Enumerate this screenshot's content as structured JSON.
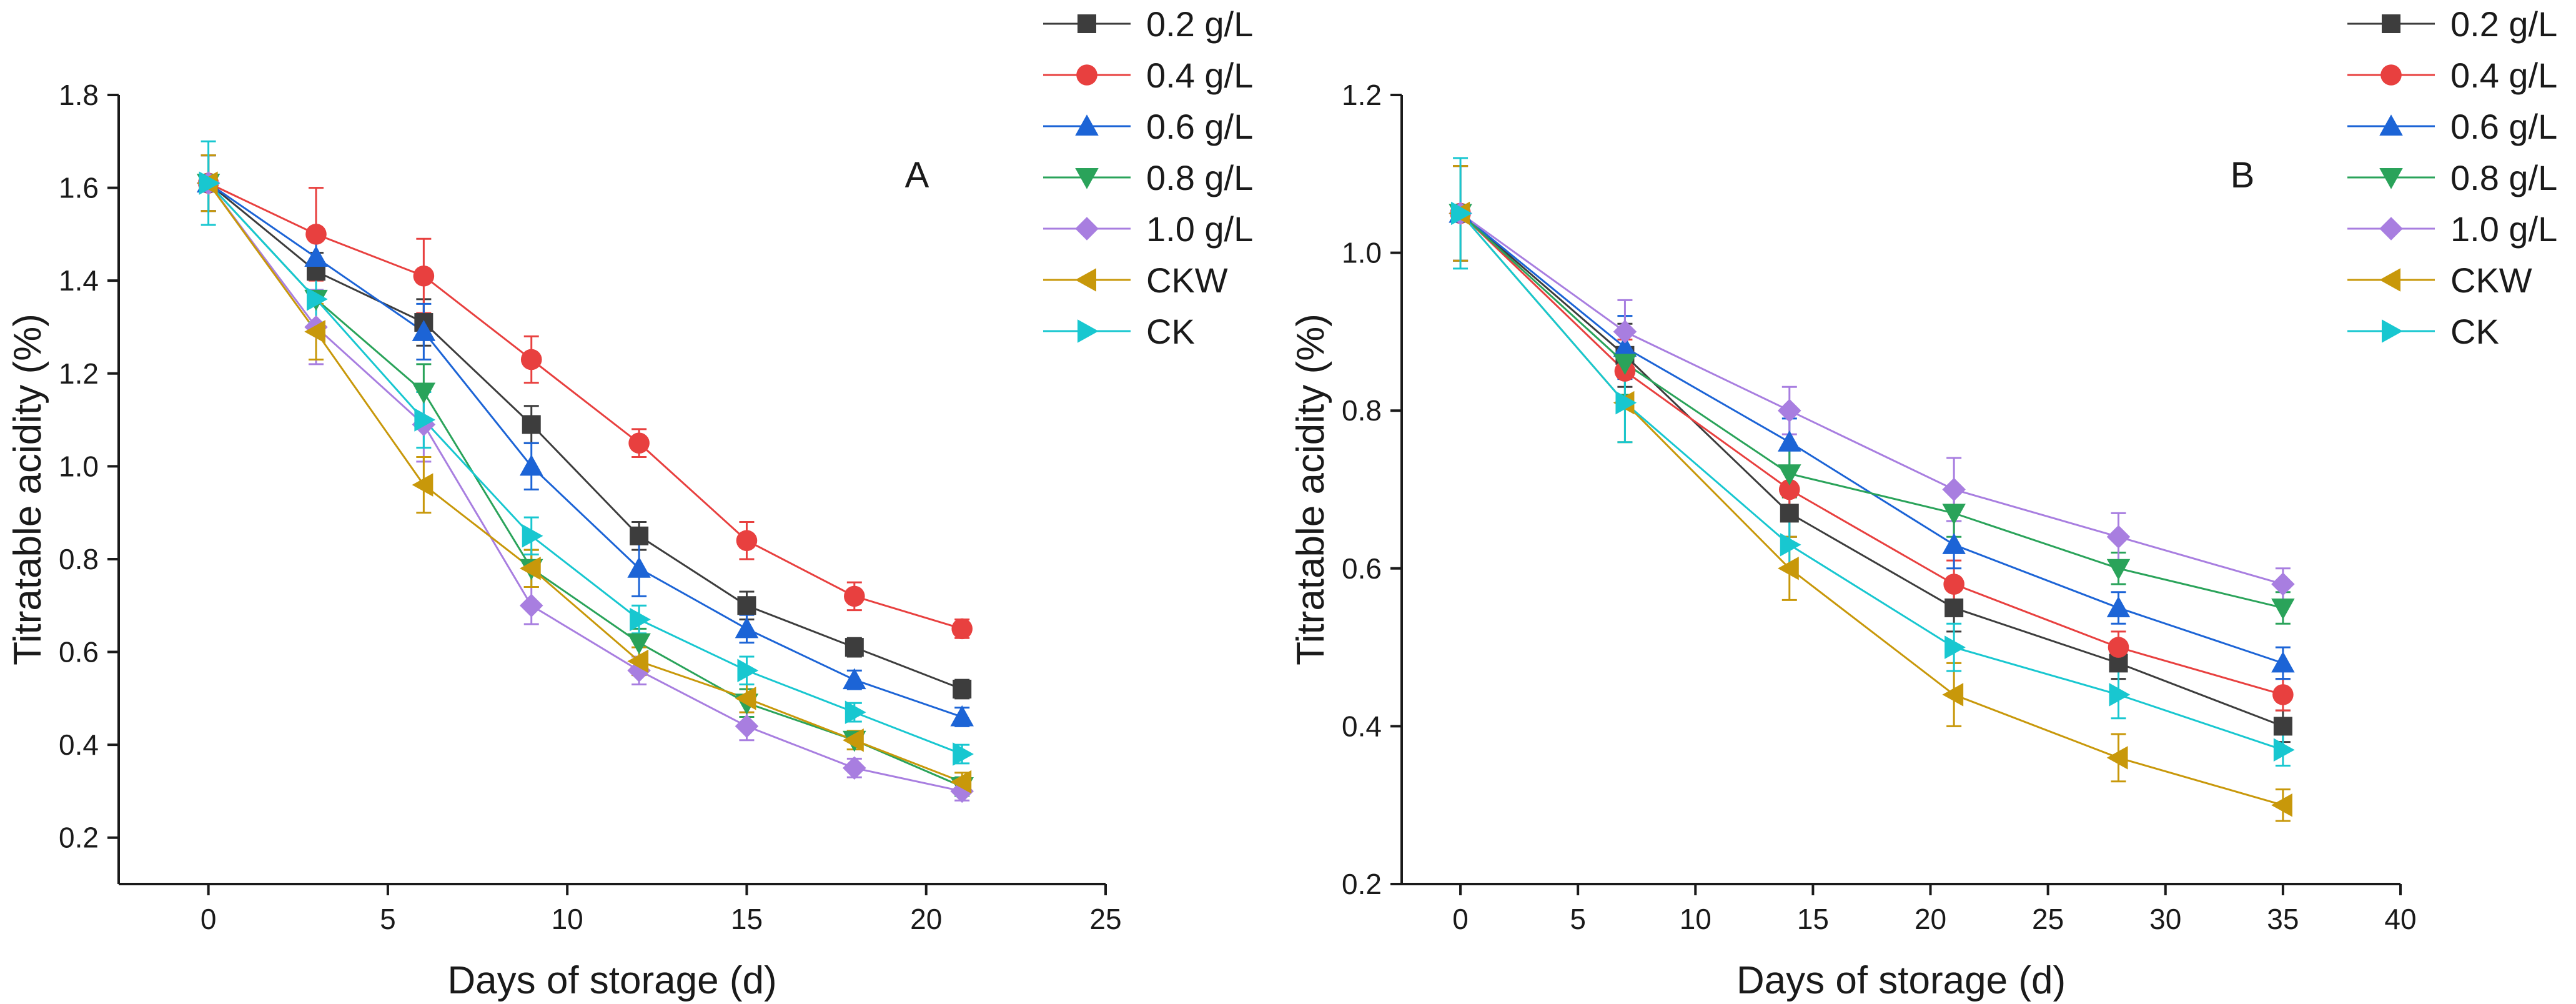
{
  "figure_title": "",
  "chart_data": [
    {
      "type": "line",
      "panel_label": "A",
      "xlabel": "Days of storage (d)",
      "ylabel": "Titratable acidity (%)",
      "xlim": [
        -2.5,
        25
      ],
      "ylim": [
        0.1,
        1.8
      ],
      "xticks": [
        0,
        5,
        10,
        15,
        20,
        25
      ],
      "yticks": [
        0.2,
        0.4,
        0.6,
        0.8,
        1.0,
        1.2,
        1.4,
        1.6,
        1.8
      ],
      "ytick_labels": [
        "0.2",
        "0.4",
        "0.6",
        "0.8",
        "1.0",
        "1.2",
        "1.4",
        "1.6",
        "1.8"
      ],
      "x": [
        0,
        3,
        6,
        9,
        12,
        15,
        18,
        21
      ],
      "legend_position": "top-right outside",
      "grid": false,
      "series": [
        {
          "name": "0.2 g/L",
          "color": "#3d3d3d",
          "marker": "square",
          "values": [
            1.61,
            1.42,
            1.31,
            1.09,
            0.85,
            0.7,
            0.61,
            0.52
          ],
          "errors": [
            0.06,
            0.04,
            0.05,
            0.04,
            0.03,
            0.03,
            0.02,
            0.02
          ]
        },
        {
          "name": "0.4 g/L",
          "color": "#e8403f",
          "marker": "circle",
          "values": [
            1.61,
            1.5,
            1.41,
            1.23,
            1.05,
            0.84,
            0.72,
            0.65
          ],
          "errors": [
            0.06,
            0.1,
            0.08,
            0.05,
            0.03,
            0.04,
            0.03,
            0.02
          ]
        },
        {
          "name": "0.6 g/L",
          "color": "#1c64d6",
          "marker": "triangle-up",
          "values": [
            1.61,
            1.45,
            1.29,
            1.0,
            0.78,
            0.65,
            0.54,
            0.46
          ],
          "errors": [
            0.06,
            0.04,
            0.06,
            0.05,
            0.06,
            0.03,
            0.02,
            0.02
          ]
        },
        {
          "name": "0.8 g/L",
          "color": "#2aa35a",
          "marker": "triangle-down",
          "values": [
            1.61,
            1.36,
            1.16,
            0.78,
            0.62,
            0.49,
            0.41,
            0.31
          ],
          "errors": [
            0.06,
            0.05,
            0.06,
            0.04,
            0.03,
            0.03,
            0.02,
            0.02
          ]
        },
        {
          "name": "1.0 g/L",
          "color": "#a87ee0",
          "marker": "diamond",
          "values": [
            1.61,
            1.3,
            1.09,
            0.7,
            0.56,
            0.44,
            0.35,
            0.3
          ],
          "errors": [
            0.06,
            0.08,
            0.08,
            0.04,
            0.03,
            0.03,
            0.02,
            0.02
          ]
        },
        {
          "name": "CKW",
          "color": "#c8980a",
          "marker": "triangle-left",
          "values": [
            1.61,
            1.29,
            0.96,
            0.78,
            0.58,
            0.5,
            0.41,
            0.32
          ],
          "errors": [
            0.06,
            0.06,
            0.06,
            0.04,
            0.03,
            0.03,
            0.02,
            0.02
          ]
        },
        {
          "name": "CK",
          "color": "#18c7d0",
          "marker": "triangle-right",
          "values": [
            1.61,
            1.36,
            1.1,
            0.85,
            0.67,
            0.56,
            0.47,
            0.38
          ],
          "errors": [
            0.09,
            0.05,
            0.06,
            0.04,
            0.03,
            0.03,
            0.02,
            0.02
          ]
        }
      ]
    },
    {
      "type": "line",
      "panel_label": "B",
      "xlabel": "Days of storage (d)",
      "ylabel": "Titratable acidity (%)",
      "xlim": [
        -2.5,
        40
      ],
      "ylim": [
        0.2,
        1.2
      ],
      "xticks": [
        0,
        5,
        10,
        15,
        20,
        25,
        30,
        35,
        40
      ],
      "yticks": [
        0.2,
        0.4,
        0.6,
        0.8,
        1.0,
        1.2
      ],
      "ytick_labels": [
        "0.2",
        "0.4",
        "0.6",
        "0.8",
        "1.0",
        "1.2"
      ],
      "x": [
        0,
        7,
        14,
        21,
        28,
        35
      ],
      "legend_position": "top-right outside",
      "grid": false,
      "series": [
        {
          "name": "0.2 g/L",
          "color": "#3d3d3d",
          "marker": "square",
          "values": [
            1.05,
            0.87,
            0.67,
            0.55,
            0.48,
            0.4
          ],
          "errors": [
            0.06,
            0.04,
            0.03,
            0.03,
            0.02,
            0.02
          ]
        },
        {
          "name": "0.4 g/L",
          "color": "#e8403f",
          "marker": "circle",
          "values": [
            1.05,
            0.85,
            0.7,
            0.58,
            0.5,
            0.44
          ],
          "errors": [
            0.06,
            0.04,
            0.03,
            0.03,
            0.02,
            0.02
          ]
        },
        {
          "name": "0.6 g/L",
          "color": "#1c64d6",
          "marker": "triangle-up",
          "values": [
            1.05,
            0.88,
            0.76,
            0.63,
            0.55,
            0.48
          ],
          "errors": [
            0.06,
            0.04,
            0.03,
            0.03,
            0.02,
            0.02
          ]
        },
        {
          "name": "0.8 g/L",
          "color": "#2aa35a",
          "marker": "triangle-down",
          "values": [
            1.05,
            0.86,
            0.72,
            0.67,
            0.6,
            0.55
          ],
          "errors": [
            0.06,
            0.04,
            0.03,
            0.03,
            0.02,
            0.02
          ]
        },
        {
          "name": "1.0 g/L",
          "color": "#a87ee0",
          "marker": "diamond",
          "values": [
            1.05,
            0.9,
            0.8,
            0.7,
            0.64,
            0.58
          ],
          "errors": [
            0.06,
            0.04,
            0.03,
            0.04,
            0.03,
            0.02
          ]
        },
        {
          "name": "CKW",
          "color": "#c8980a",
          "marker": "triangle-left",
          "values": [
            1.05,
            0.81,
            0.6,
            0.44,
            0.36,
            0.3
          ],
          "errors": [
            0.06,
            0.05,
            0.04,
            0.04,
            0.03,
            0.02
          ]
        },
        {
          "name": "CK",
          "color": "#18c7d0",
          "marker": "triangle-right",
          "values": [
            1.05,
            0.81,
            0.63,
            0.5,
            0.44,
            0.37
          ],
          "errors": [
            0.07,
            0.05,
            0.03,
            0.03,
            0.03,
            0.02
          ]
        }
      ]
    }
  ]
}
